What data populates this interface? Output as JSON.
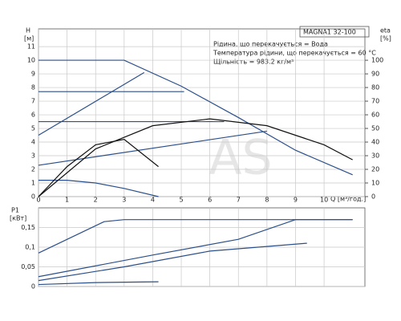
{
  "chart_data": [
    {
      "type": "line",
      "title": "MAGNA1 32-100",
      "annotations": [
        "Рідина, що перекачується = Вода",
        "Температура рідини, що перекачується = 60 °C",
        "Щільність = 983.2 кг/м³"
      ],
      "watermark": "AS",
      "y_label": "H",
      "y_unit": "[м]",
      "y2_label": "eta",
      "y2_unit": "[%]",
      "x_label": "Q [м³/год.]",
      "xlim": [
        0,
        11.43
      ],
      "xticks": [
        0,
        1,
        2,
        3,
        4,
        5,
        6,
        7,
        8,
        9,
        10
      ],
      "ylim": [
        0,
        12.3
      ],
      "yticks": [
        0,
        1,
        2,
        3,
        4,
        5,
        6,
        7,
        8,
        9,
        10,
        11
      ],
      "y2lim": [
        0,
        123
      ],
      "y2ticks": [
        0,
        10,
        20,
        30,
        40,
        50,
        60,
        70,
        80,
        90,
        100
      ],
      "grid": true,
      "series": [
        {
          "color": "#2b4f8a",
          "x": [
            0,
            3,
            5,
            7,
            9,
            11
          ],
          "values": [
            10,
            10,
            8.1,
            5.8,
            3.4,
            1.6
          ]
        },
        {
          "color": "#2b4f8a",
          "x": [
            0,
            5.1
          ],
          "values": [
            7.7,
            7.7
          ]
        },
        {
          "color": "#2b4f8a",
          "x": [
            0,
            6.5
          ],
          "values": [
            5.5,
            5.5
          ]
        },
        {
          "color": "#2b4f8a",
          "x": [
            0,
            3.7
          ],
          "values": [
            4.5,
            9.1
          ]
        },
        {
          "color": "#2b4f8a",
          "x": [
            0,
            8
          ],
          "values": [
            2.3,
            4.8
          ]
        },
        {
          "color": "#2b4f8a",
          "x": [
            0,
            1,
            2,
            3,
            4.2
          ],
          "values": [
            1.2,
            1.2,
            1,
            0.6,
            0
          ]
        },
        {
          "color": "#111111",
          "axis": "y2",
          "x": [
            0,
            2,
            4,
            6,
            8,
            10,
            11
          ],
          "values": [
            0,
            35,
            52,
            57,
            52,
            38,
            27
          ]
        },
        {
          "color": "#111111",
          "axis": "y2",
          "x": [
            0,
            1,
            2,
            3,
            4.2
          ],
          "values": [
            0,
            22,
            38,
            42,
            22
          ]
        }
      ]
    },
    {
      "type": "line",
      "y_label": "P1",
      "y_unit": "[кВт]",
      "xlim": [
        0,
        11.43
      ],
      "xticks": [
        0,
        1,
        2,
        3,
        4,
        5,
        6,
        7,
        8,
        9,
        10
      ],
      "ylim": [
        0,
        0.2
      ],
      "yticks": [
        0,
        {
          "value": 0.05,
          "label": "0,05"
        },
        {
          "value": 0.1,
          "label": "0,1"
        },
        {
          "value": 0.15,
          "label": "0,15"
        }
      ],
      "grid": true,
      "series": [
        {
          "color": "#2b4f8a",
          "x": [
            0,
            2.3,
            3,
            11
          ],
          "values": [
            0.085,
            0.165,
            0.17,
            0.17
          ]
        },
        {
          "color": "#2b4f8a",
          "x": [
            0,
            4,
            7,
            9,
            11
          ],
          "values": [
            0.025,
            0.08,
            0.12,
            0.17,
            0.17
          ]
        },
        {
          "color": "#2b4f8a",
          "x": [
            0,
            3,
            6,
            9.4
          ],
          "values": [
            0.015,
            0.05,
            0.09,
            0.11
          ]
        },
        {
          "color": "#2b4f8a",
          "x": [
            0,
            2,
            4.2
          ],
          "values": [
            0.005,
            0.01,
            0.012
          ]
        }
      ]
    }
  ]
}
